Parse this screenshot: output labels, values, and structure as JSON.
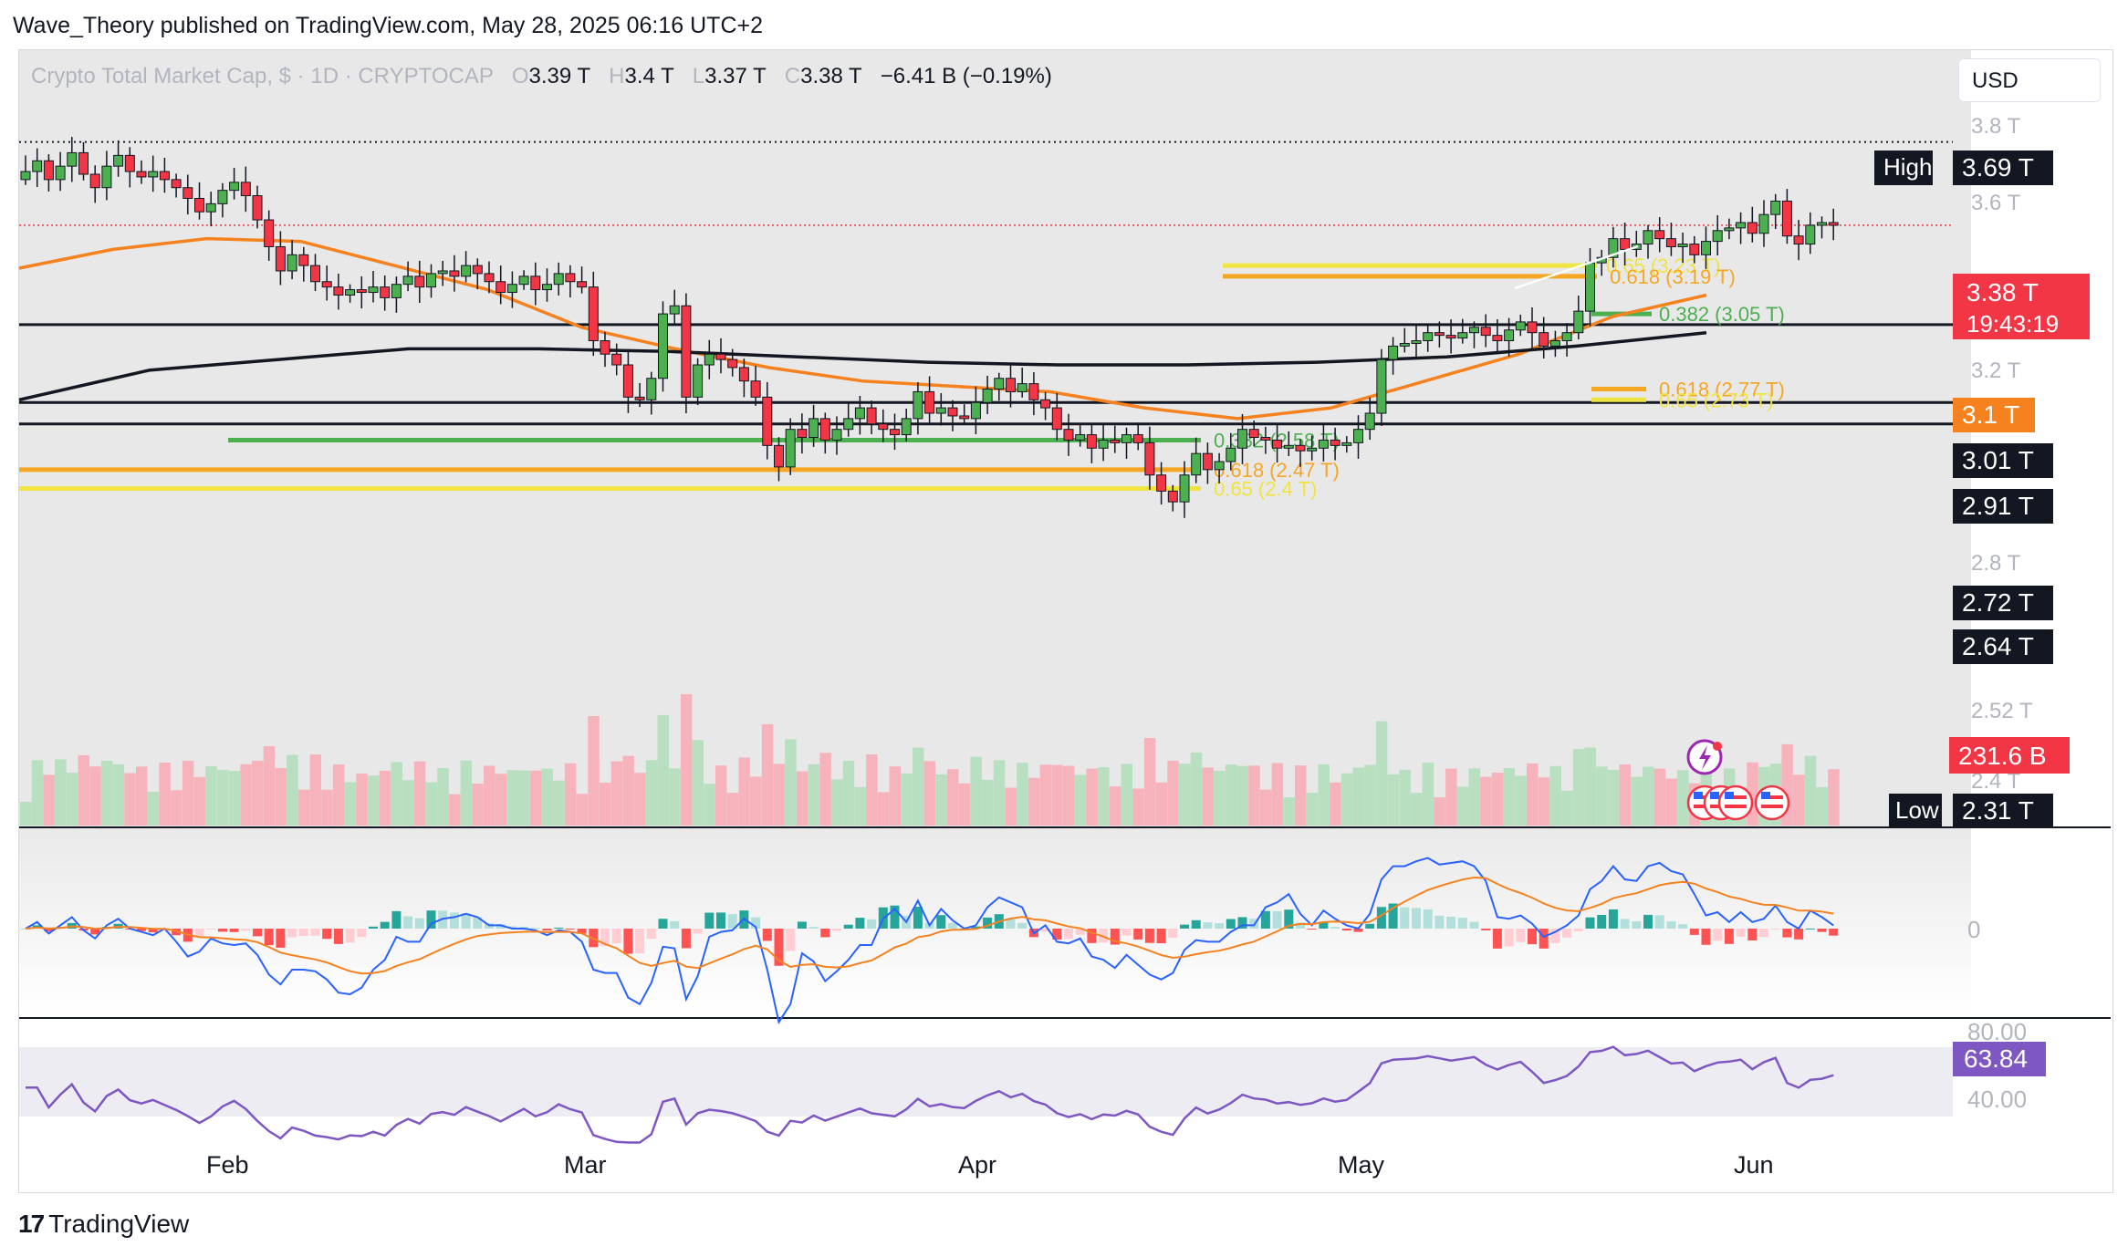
{
  "publisher": "Wave_Theory published on TradingView.com, May 28, 2025 06:16 UTC+2",
  "footer": {
    "brand": "TradingView",
    "logo_icon": "tradingview-logo-icon"
  },
  "currency_button": "USD",
  "legend": {
    "symbol": "Crypto Total Market Cap, $ · 1D · CRYPTOCAP",
    "o_label": "O",
    "o": "3.39 T",
    "h_label": "H",
    "h": "3.4 T",
    "l_label": "L",
    "l": "3.37 T",
    "c_label": "C",
    "c": "3.38 T",
    "change": "−6.41 B (−0.19%)"
  },
  "colors": {
    "up": "#4caf50",
    "down": "#f23645",
    "ema50": "#f5821f",
    "sma200": "#131722",
    "fib_orange": "#f5a623",
    "fib_yellow": "#f0e442",
    "fib_green": "#4caf50",
    "macd_line": "#2962ff",
    "signal_line": "#f5821f",
    "rsi": "#7e57c2",
    "volume_up": "#b7dfc0",
    "volume_down": "#f7b3bb"
  },
  "price_badges": {
    "high_label": "High",
    "high": "3.69 T",
    "low_label": "Low",
    "low": "2.31 T",
    "last": "3.38 T",
    "countdown": "19:43:19",
    "ema": "3.1 T",
    "levels": [
      "3.01 T",
      "2.91 T",
      "2.72 T",
      "2.64 T"
    ],
    "volume": "231.6 B",
    "rsi": "63.84"
  },
  "chart_data": {
    "type": "candlestick",
    "title": "Crypto Total Market Cap, $ · 1D · CRYPTOCAP",
    "y_axis_ticks": [
      "3.8 T",
      "3.6 T",
      "3.2 T",
      "2.8 T",
      "2.52 T",
      "2.4 T"
    ],
    "x_axis_ticks": [
      "Feb",
      "Mar",
      "Apr",
      "May",
      "Jun"
    ],
    "ylim": [
      2.31,
      3.8
    ],
    "horizontal_levels": [
      3.69,
      3.01,
      2.72,
      2.64
    ],
    "closes": [
      3.58,
      3.62,
      3.55,
      3.6,
      3.65,
      3.57,
      3.52,
      3.6,
      3.64,
      3.58,
      3.56,
      3.58,
      3.55,
      3.52,
      3.48,
      3.43,
      3.46,
      3.51,
      3.54,
      3.49,
      3.4,
      3.3,
      3.21,
      3.27,
      3.23,
      3.17,
      3.15,
      3.12,
      3.14,
      3.13,
      3.15,
      3.11,
      3.16,
      3.19,
      3.15,
      3.2,
      3.21,
      3.19,
      3.23,
      3.2,
      3.17,
      3.13,
      3.16,
      3.19,
      3.14,
      3.16,
      3.2,
      3.17,
      3.15,
      2.95,
      2.9,
      2.86,
      2.74,
      2.73,
      2.81,
      3.05,
      3.08,
      2.74,
      2.86,
      2.9,
      2.88,
      2.85,
      2.8,
      2.74,
      2.56,
      2.48,
      2.62,
      2.59,
      2.66,
      2.58,
      2.62,
      2.66,
      2.7,
      2.64,
      2.62,
      2.6,
      2.66,
      2.76,
      2.68,
      2.7,
      2.67,
      2.66,
      2.72,
      2.77,
      2.81,
      2.76,
      2.79,
      2.73,
      2.7,
      2.62,
      2.58,
      2.6,
      2.55,
      2.58,
      2.57,
      2.6,
      2.57,
      2.45,
      2.39,
      2.35,
      2.45,
      2.53,
      2.47,
      2.5,
      2.55,
      2.62,
      2.59,
      2.58,
      2.55,
      2.56,
      2.54,
      2.55,
      2.58,
      2.56,
      2.57,
      2.62,
      2.68,
      2.88,
      2.93,
      2.94,
      2.95,
      2.98,
      2.97,
      2.96,
      2.98,
      3.0,
      2.97,
      2.95,
      2.99,
      3.02,
      2.98,
      2.93,
      2.95,
      2.98,
      3.06,
      3.24,
      3.26,
      3.33,
      3.29,
      3.31,
      3.36,
      3.33,
      3.3,
      3.31,
      3.27,
      3.32,
      3.36,
      3.37,
      3.39,
      3.35,
      3.42,
      3.47,
      3.34,
      3.31,
      3.38,
      3.39,
      3.38
    ],
    "ema50_anchor_values": [
      3.22,
      3.29,
      3.33,
      3.32,
      3.23,
      3.14,
      3.0,
      2.92,
      2.85,
      2.8,
      2.78,
      2.76,
      2.7,
      2.66,
      2.7,
      2.8,
      2.9,
      3.04,
      3.12
    ],
    "sma200_anchor_values": [
      2.73,
      2.84,
      2.88,
      2.92,
      2.92,
      2.91,
      2.89,
      2.87,
      2.86,
      2.86,
      2.87,
      2.89,
      2.93,
      2.98
    ],
    "fib_levels": [
      {
        "ratio": "0.65",
        "label": "0.65 (3.23 T)",
        "value": 3.23
      },
      {
        "ratio": "0.618",
        "label": "0.618 (3.19 T)",
        "value": 3.19
      },
      {
        "ratio": "0.382",
        "label": "0.382 (3.05 T)",
        "value": 3.05
      },
      {
        "ratio": "0.618",
        "label": "0.618 (2.77 T)",
        "value": 2.77
      },
      {
        "ratio": "0.65",
        "label": "0.65 (2.73 T)",
        "value": 2.73
      },
      {
        "ratio": "0.382",
        "label": "0.382 (2.58 T)",
        "value": 2.58
      },
      {
        "ratio": "0.618",
        "label": "0.618 (2.47 T)",
        "value": 2.47
      },
      {
        "ratio": "0.65",
        "label": "0.65 (2.4 T)",
        "value": 2.4
      }
    ],
    "macd": {
      "zero_label": "0"
    },
    "rsi": {
      "upper_label": "80.00",
      "lower_label": "40.00",
      "value": 63.84
    }
  }
}
